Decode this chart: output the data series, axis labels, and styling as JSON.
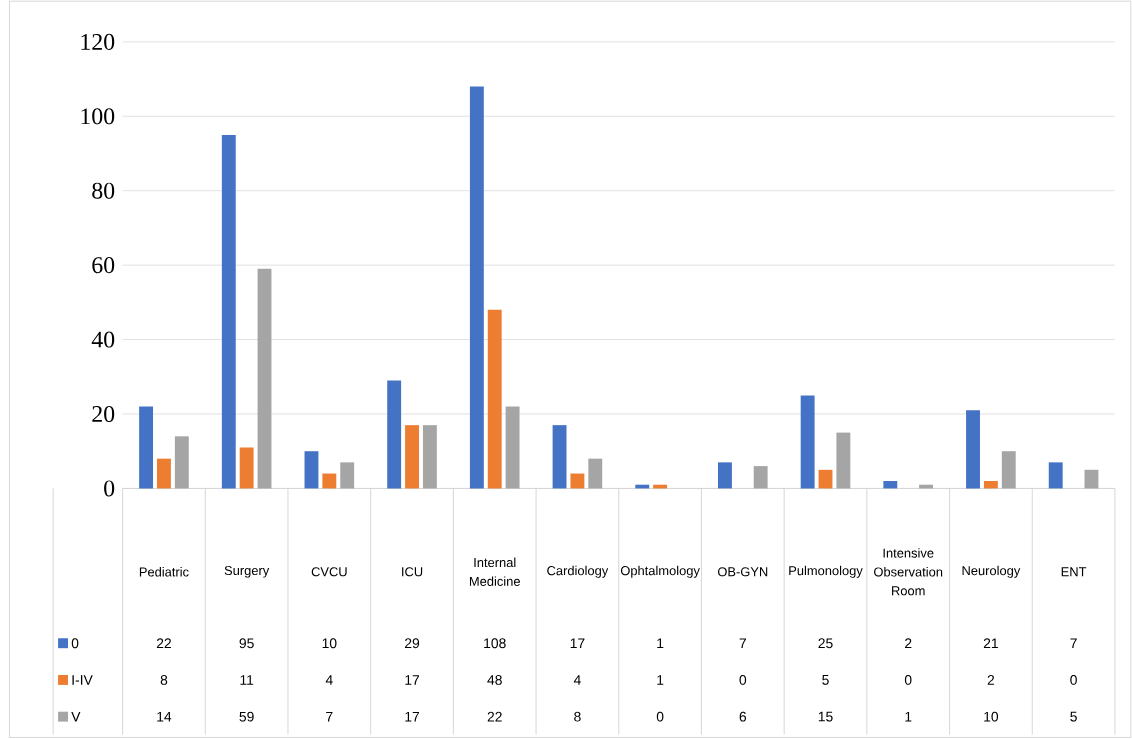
{
  "chart_data": {
    "type": "bar",
    "categories": [
      "Pediatric",
      "Surgery",
      "CVCU",
      "ICU",
      "Internal Medicine",
      "Cardiology",
      "Ophtalmology",
      "OB-GYN",
      "Pulmonology",
      "Intensive Observation Room",
      "Neurology",
      "ENT"
    ],
    "series": [
      {
        "name": "0",
        "color": "#4472c4",
        "values": [
          22,
          95,
          10,
          29,
          108,
          17,
          1,
          7,
          25,
          2,
          21,
          7
        ]
      },
      {
        "name": "I-IV",
        "color": "#ed7d31",
        "values": [
          8,
          11,
          4,
          17,
          48,
          4,
          1,
          0,
          5,
          0,
          2,
          0
        ]
      },
      {
        "name": "V",
        "color": "#a5a5a5",
        "values": [
          14,
          59,
          7,
          17,
          22,
          8,
          0,
          6,
          15,
          1,
          10,
          5
        ]
      }
    ],
    "ylim": [
      0,
      120
    ],
    "yticks": [
      0,
      20,
      40,
      60,
      80,
      100,
      120
    ],
    "grid": "y",
    "legend": "bottom",
    "data_labels": true
  }
}
